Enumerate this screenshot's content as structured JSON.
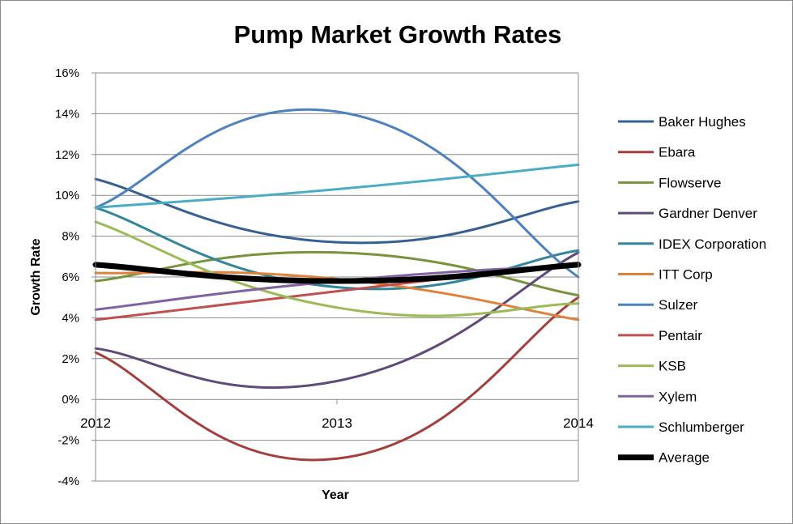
{
  "chart_data": {
    "type": "line",
    "title": "Pump Market Growth Rates",
    "xlabel": "Year",
    "ylabel": "Growth Rate",
    "x": [
      "2012",
      "2013",
      "2014"
    ],
    "ylim": [
      -0.04,
      0.16
    ],
    "y_ticks": [
      "16%",
      "14%",
      "12%",
      "10%",
      "8%",
      "6%",
      "4%",
      "2%",
      "0%",
      "-2%",
      "-4%"
    ],
    "y_tick_values": [
      0.16,
      0.14,
      0.12,
      0.1,
      0.08,
      0.06,
      0.04,
      0.02,
      0.0,
      -0.02,
      -0.04
    ],
    "grid": "horizontal",
    "legend_position": "right",
    "smooth": true,
    "series": [
      {
        "name": "Baker Hughes",
        "color": "#376092",
        "width": 3,
        "values": [
          0.108,
          0.077,
          0.097
        ]
      },
      {
        "name": "Ebara",
        "color": "#a33f3c",
        "width": 3,
        "values": [
          0.023,
          -0.029,
          0.05
        ]
      },
      {
        "name": "Flowserve",
        "color": "#77933c",
        "width": 3,
        "values": [
          0.058,
          0.072,
          0.051
        ]
      },
      {
        "name": "Gardner Denver",
        "color": "#60497b",
        "width": 3,
        "values": [
          0.025,
          0.009,
          0.072
        ]
      },
      {
        "name": "IDEX Corporation",
        "color": "#31859c",
        "width": 3,
        "values": [
          0.094,
          0.055,
          0.073
        ]
      },
      {
        "name": "ITT Corp",
        "color": "#e0823c",
        "width": 3,
        "values": [
          0.062,
          0.059,
          0.039
        ]
      },
      {
        "name": "Sulzer",
        "color": "#4f81bd",
        "width": 3,
        "values": [
          0.094,
          0.141,
          0.06
        ]
      },
      {
        "name": "Pentair",
        "color": "#c0504d",
        "width": 3,
        "values": [
          0.039,
          0.053,
          0.067
        ]
      },
      {
        "name": "KSB",
        "color": "#9bbb59",
        "width": 3,
        "values": [
          0.087,
          0.045,
          0.047
        ]
      },
      {
        "name": "Xylem",
        "color": "#8064a2",
        "width": 3,
        "values": [
          0.044,
          0.058,
          0.066
        ]
      },
      {
        "name": "Schlumberger",
        "color": "#4bacc6",
        "width": 3,
        "values": [
          0.094,
          0.103,
          0.115
        ]
      },
      {
        "name": "Average",
        "color": "#000000",
        "width": 7,
        "values": [
          0.066,
          0.058,
          0.066
        ]
      }
    ]
  }
}
